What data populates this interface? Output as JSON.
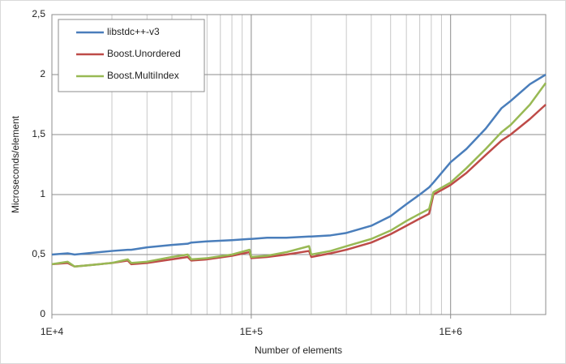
{
  "chart_data": {
    "type": "line",
    "x_label": "Number of elements",
    "y_label": "Microseconds/element",
    "log_x": true,
    "grid": true,
    "legend": "top-left",
    "x": [
      10000,
      12000,
      13000,
      15000,
      20000,
      24000,
      25000,
      30000,
      40000,
      48000,
      50000,
      60000,
      80000,
      98000,
      100000,
      120000,
      150000,
      195000,
      200000,
      250000,
      300000,
      400000,
      500000,
      600000,
      700000,
      780000,
      820000,
      1000000,
      1200000,
      1500000,
      1800000,
      2000000,
      2500000,
      3000000
    ],
    "series": [
      {
        "name": "libstdc++-v3",
        "color": "#4a7ebb",
        "values": [
          0.5,
          0.51,
          0.5,
          0.51,
          0.53,
          0.54,
          0.54,
          0.56,
          0.58,
          0.59,
          0.6,
          0.61,
          0.62,
          0.63,
          0.63,
          0.64,
          0.64,
          0.65,
          0.65,
          0.66,
          0.68,
          0.74,
          0.82,
          0.92,
          1.0,
          1.06,
          1.1,
          1.27,
          1.38,
          1.55,
          1.72,
          1.78,
          1.92,
          2.0
        ]
      },
      {
        "name": "Boost.Unordered",
        "color": "#be4b48",
        "values": [
          0.42,
          0.43,
          0.4,
          0.41,
          0.43,
          0.45,
          0.42,
          0.43,
          0.46,
          0.48,
          0.45,
          0.46,
          0.49,
          0.52,
          0.47,
          0.48,
          0.5,
          0.53,
          0.48,
          0.51,
          0.54,
          0.6,
          0.67,
          0.74,
          0.8,
          0.84,
          1.0,
          1.08,
          1.18,
          1.33,
          1.45,
          1.5,
          1.63,
          1.75
        ]
      },
      {
        "name": "Boost.MultiIndex",
        "color": "#98b954",
        "values": [
          0.42,
          0.44,
          0.4,
          0.41,
          0.43,
          0.46,
          0.43,
          0.44,
          0.48,
          0.5,
          0.46,
          0.47,
          0.5,
          0.54,
          0.48,
          0.49,
          0.52,
          0.57,
          0.5,
          0.53,
          0.57,
          0.63,
          0.7,
          0.78,
          0.84,
          0.88,
          1.02,
          1.1,
          1.22,
          1.38,
          1.52,
          1.58,
          1.75,
          1.93
        ]
      }
    ],
    "xlim": [
      10000,
      3000000
    ],
    "xticks": [
      {
        "value": 10000,
        "label": "1E+4"
      },
      {
        "value": 100000,
        "label": "1E+5"
      },
      {
        "value": 1000000,
        "label": "1E+6"
      }
    ],
    "xminorticks": [
      20000,
      30000,
      40000,
      50000,
      60000,
      70000,
      80000,
      90000,
      200000,
      300000,
      400000,
      500000,
      600000,
      700000,
      800000,
      900000,
      2000000
    ],
    "ylim": [
      0,
      2.5
    ],
    "yticks": [
      0,
      {
        "value": 0.5,
        "label": "0,5"
      },
      1,
      {
        "value": 1.5,
        "label": "1,5"
      },
      2,
      {
        "value": 2.5,
        "label": "2,5"
      }
    ]
  }
}
